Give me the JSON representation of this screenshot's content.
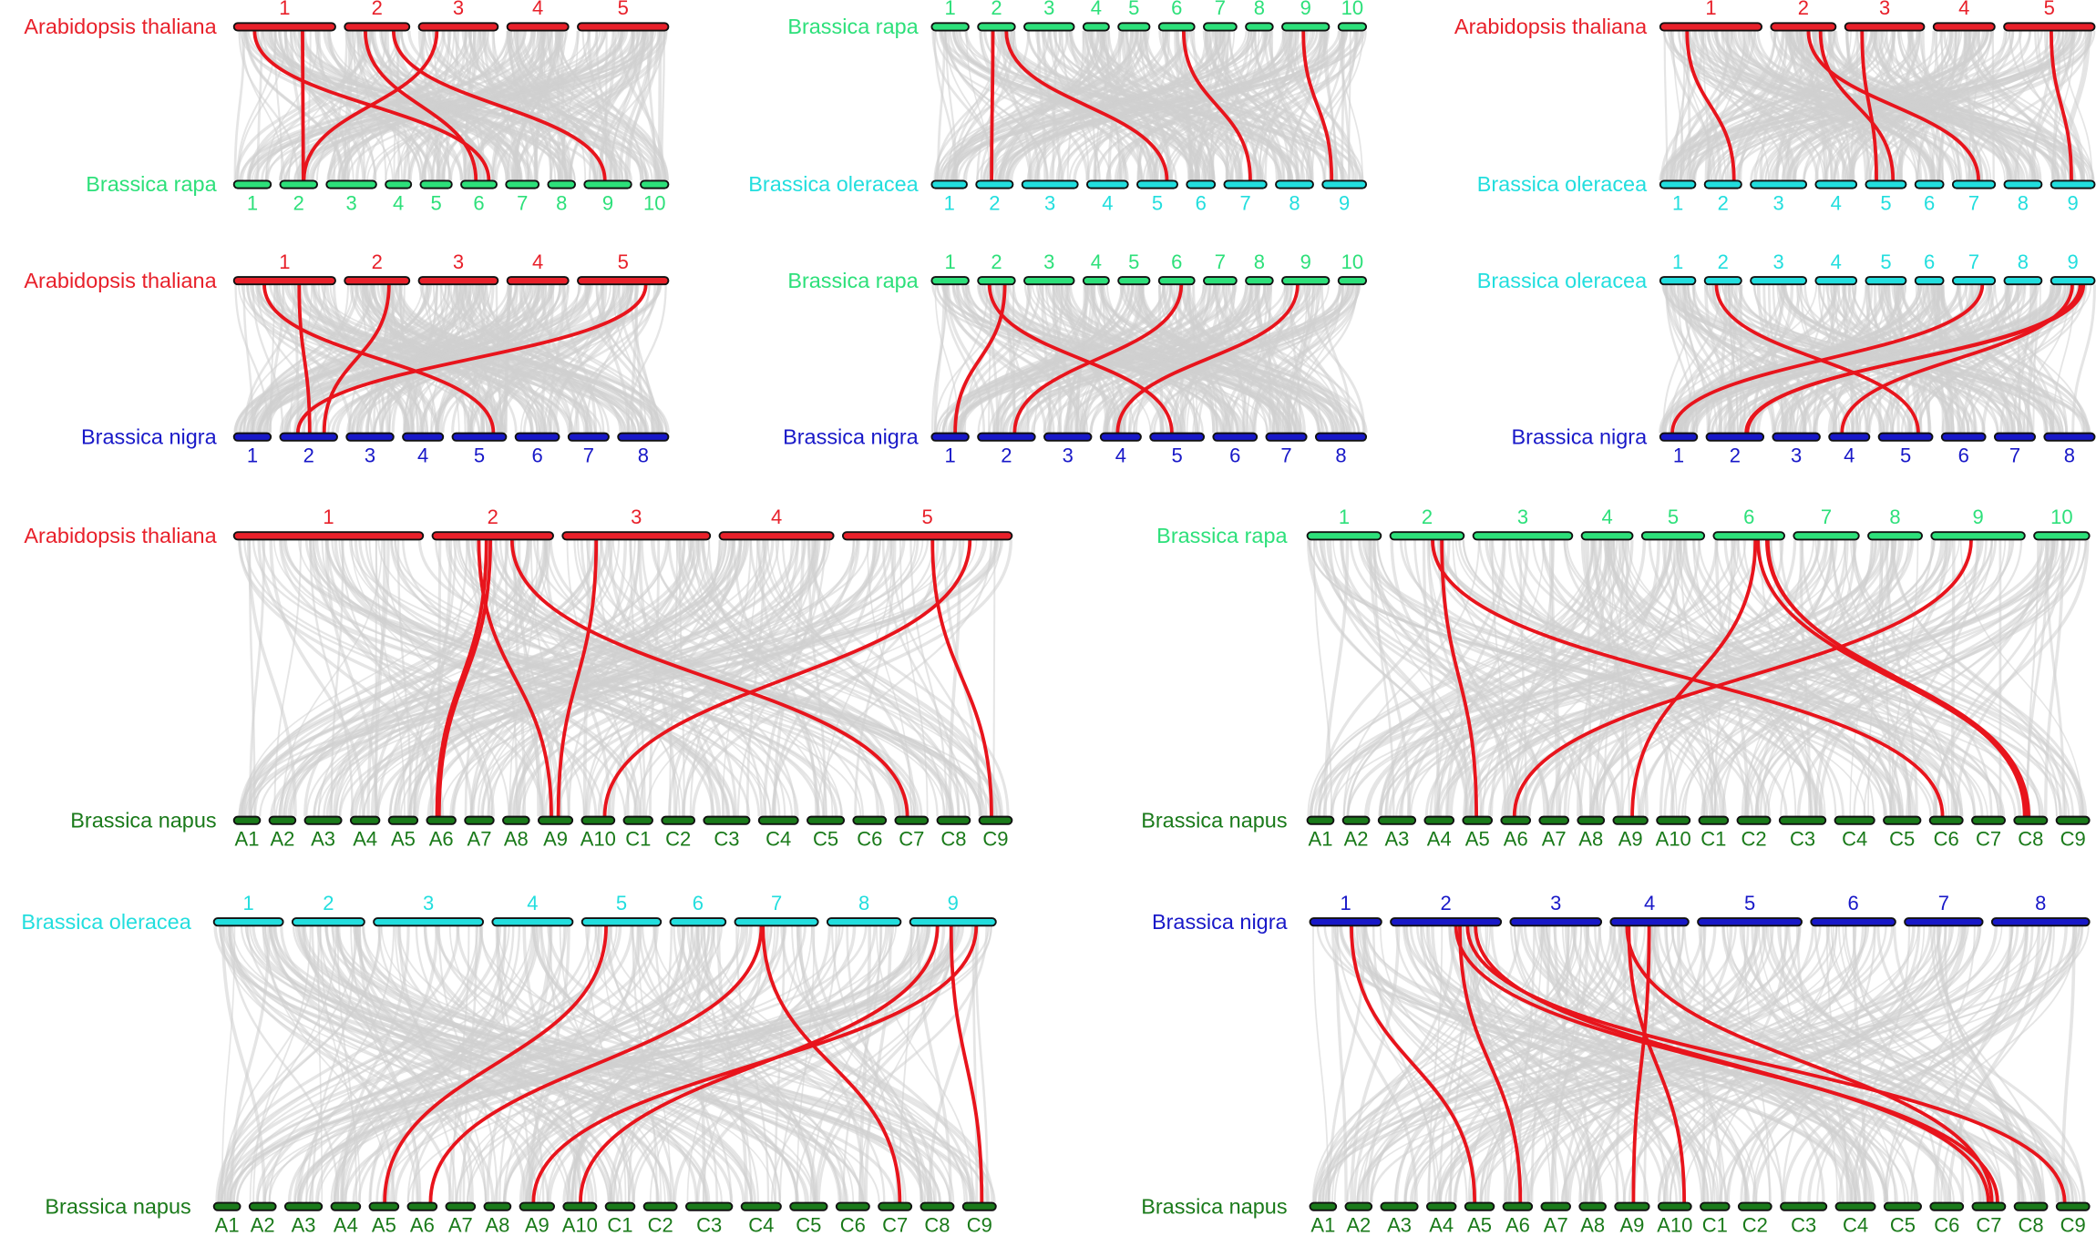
{
  "panels": [
    {
      "top": {
        "name": "Arabidopsis thaliana",
        "color": "#e8202a",
        "chromosomes": [
          "1",
          "2",
          "3",
          "4",
          "5"
        ]
      },
      "bottom": {
        "name": "Brassica rapa",
        "color": "#2de07a",
        "chromosomes": [
          "1",
          "2",
          "3",
          "4",
          "5",
          "6",
          "7",
          "8",
          "9",
          "10"
        ]
      }
    },
    {
      "top": {
        "name": "Brassica rapa",
        "color": "#2de07a",
        "chromosomes": [
          "1",
          "2",
          "3",
          "4",
          "5",
          "6",
          "7",
          "8",
          "9",
          "10"
        ]
      },
      "bottom": {
        "name": "Brassica oleracea",
        "color": "#22dede",
        "chromosomes": [
          "1",
          "2",
          "3",
          "4",
          "5",
          "6",
          "7",
          "8",
          "9"
        ]
      }
    },
    {
      "top": {
        "name": "Arabidopsis thaliana",
        "color": "#e8202a",
        "chromosomes": [
          "1",
          "2",
          "3",
          "4",
          "5"
        ]
      },
      "bottom": {
        "name": "Brassica oleracea",
        "color": "#22dede",
        "chromosomes": [
          "1",
          "2",
          "3",
          "4",
          "5",
          "6",
          "7",
          "8",
          "9"
        ]
      }
    },
    {
      "top": {
        "name": "Arabidopsis thaliana",
        "color": "#e8202a",
        "chromosomes": [
          "1",
          "2",
          "3",
          "4",
          "5"
        ]
      },
      "bottom": {
        "name": "Brassica nigra",
        "color": "#1818c8",
        "chromosomes": [
          "1",
          "2",
          "3",
          "4",
          "5",
          "6",
          "7",
          "8"
        ]
      }
    },
    {
      "top": {
        "name": "Brassica rapa",
        "color": "#2de07a",
        "chromosomes": [
          "1",
          "2",
          "3",
          "4",
          "5",
          "6",
          "7",
          "8",
          "9",
          "10"
        ]
      },
      "bottom": {
        "name": "Brassica nigra",
        "color": "#1818c8",
        "chromosomes": [
          "1",
          "2",
          "3",
          "4",
          "5",
          "6",
          "7",
          "8"
        ]
      }
    },
    {
      "top": {
        "name": "Brassica oleracea",
        "color": "#22dede",
        "chromosomes": [
          "1",
          "2",
          "3",
          "4",
          "5",
          "6",
          "7",
          "8",
          "9"
        ]
      },
      "bottom": {
        "name": "Brassica nigra",
        "color": "#1818c8",
        "chromosomes": [
          "1",
          "2",
          "3",
          "4",
          "5",
          "6",
          "7",
          "8"
        ]
      }
    },
    {
      "top": {
        "name": "Arabidopsis thaliana",
        "color": "#e8202a",
        "chromosomes": [
          "1",
          "2",
          "3",
          "4",
          "5"
        ]
      },
      "bottom": {
        "name": "Brassica napus",
        "color": "#1a7a1a",
        "chromosomes": [
          "A1",
          "A2",
          "A3",
          "A4",
          "A5",
          "A6",
          "A7",
          "A8",
          "A9",
          "A10",
          "C1",
          "C2",
          "C3",
          "C4",
          "C5",
          "C6",
          "C7",
          "C8",
          "C9"
        ]
      }
    },
    {
      "top": {
        "name": "Brassica rapa",
        "color": "#2de07a",
        "chromosomes": [
          "1",
          "2",
          "3",
          "4",
          "5",
          "6",
          "7",
          "8",
          "9",
          "10"
        ]
      },
      "bottom": {
        "name": "Brassica napus",
        "color": "#1a7a1a",
        "chromosomes": [
          "A1",
          "A2",
          "A3",
          "A4",
          "A5",
          "A6",
          "A7",
          "A8",
          "A9",
          "A10",
          "C1",
          "C2",
          "C3",
          "C4",
          "C5",
          "C6",
          "C7",
          "C8",
          "C9"
        ]
      }
    },
    {
      "top": {
        "name": "Brassica oleracea",
        "color": "#22dede",
        "chromosomes": [
          "1",
          "2",
          "3",
          "4",
          "5",
          "6",
          "7",
          "8",
          "9"
        ]
      },
      "bottom": {
        "name": "Brassica napus",
        "color": "#1a7a1a",
        "chromosomes": [
          "A1",
          "A2",
          "A3",
          "A4",
          "A5",
          "A6",
          "A7",
          "A8",
          "A9",
          "A10",
          "C1",
          "C2",
          "C3",
          "C4",
          "C5",
          "C6",
          "C7",
          "C8",
          "C9"
        ]
      }
    },
    {
      "top": {
        "name": "Brassica nigra",
        "color": "#1818c8",
        "chromosomes": [
          "1",
          "2",
          "3",
          "4",
          "5",
          "6",
          "7",
          "8"
        ]
      },
      "bottom": {
        "name": "Brassica napus",
        "color": "#1a7a1a",
        "chromosomes": [
          "A1",
          "A2",
          "A3",
          "A4",
          "A5",
          "A6",
          "A7",
          "A8",
          "A9",
          "A10",
          "C1",
          "C2",
          "C3",
          "C4",
          "C5",
          "C6",
          "C7",
          "C8",
          "C9"
        ]
      }
    }
  ]
}
